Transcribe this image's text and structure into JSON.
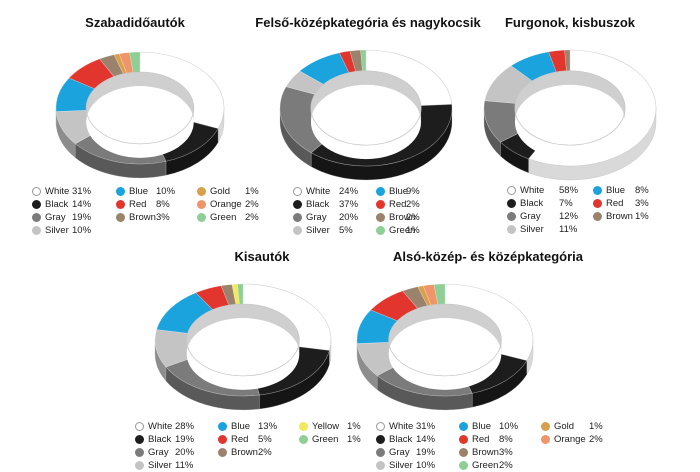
{
  "colors": {
    "White": "#ffffff",
    "Black": "#1d1d1d",
    "Gray": "#7b7b7b",
    "Silver": "#c4c4c4",
    "Blue": "#1aa3dd",
    "Red": "#e2352d",
    "Brown": "#9a826c",
    "Gold": "#d9a04b",
    "Orange": "#f0956a",
    "Green": "#8fcf95",
    "Yellow": "#f1e95c"
  },
  "chart_data": [
    {
      "type": "pie",
      "title": "Szabadidőautók",
      "slices": [
        {
          "label": "White",
          "value": 31,
          "text": "31%"
        },
        {
          "label": "Black",
          "value": 14,
          "text": "14%"
        },
        {
          "label": "Gray",
          "value": 19,
          "text": "19%"
        },
        {
          "label": "Silver",
          "value": 10,
          "text": "10%"
        },
        {
          "label": "Blue",
          "value": 10,
          "text": "10%"
        },
        {
          "label": "Red",
          "value": 8,
          "text": "8%"
        },
        {
          "label": "Brown",
          "value": 3,
          "text": "3%"
        },
        {
          "label": "Gold",
          "value": 1,
          "text": "1%"
        },
        {
          "label": "Orange",
          "value": 2,
          "text": "2%"
        },
        {
          "label": "Green",
          "value": 2,
          "text": "2%"
        }
      ],
      "legend_columns": [
        [
          "White",
          "Black",
          "Gray",
          "Silver"
        ],
        [
          "Blue",
          "Red",
          "Brown"
        ],
        [
          "Gold",
          "Orange",
          "Green"
        ]
      ]
    },
    {
      "type": "pie",
      "title": "Felső-középkategória és nagykocsik",
      "slices": [
        {
          "label": "White",
          "value": 24,
          "text": "24%"
        },
        {
          "label": "Black",
          "value": 37,
          "text": "37%"
        },
        {
          "label": "Gray",
          "value": 20,
          "text": "20%"
        },
        {
          "label": "Silver",
          "value": 5,
          "text": "5%"
        },
        {
          "label": "Blue",
          "value": 9,
          "text": "9%"
        },
        {
          "label": "Red",
          "value": 2,
          "text": "2%"
        },
        {
          "label": "Brown",
          "value": 2,
          "text": "2%"
        },
        {
          "label": "Green",
          "value": 1,
          "text": "1%"
        }
      ],
      "legend_columns": [
        [
          "White",
          "Black",
          "Gray",
          "Silver"
        ],
        [
          "Blue",
          "Red",
          "Brown",
          "Green"
        ]
      ]
    },
    {
      "type": "pie",
      "title": "Furgonok, kisbuszok",
      "slices": [
        {
          "label": "White",
          "value": 58,
          "text": "58%"
        },
        {
          "label": "Black",
          "value": 7,
          "text": "7%"
        },
        {
          "label": "Gray",
          "value": 12,
          "text": "12%"
        },
        {
          "label": "Silver",
          "value": 11,
          "text": "11%"
        },
        {
          "label": "Blue",
          "value": 8,
          "text": "8%"
        },
        {
          "label": "Red",
          "value": 3,
          "text": "3%"
        },
        {
          "label": "Brown",
          "value": 1,
          "text": "1%"
        }
      ],
      "legend_columns": [
        [
          "White",
          "Black",
          "Gray",
          "Silver"
        ],
        [
          "Blue",
          "Red",
          "Brown"
        ]
      ]
    },
    {
      "type": "pie",
      "title": "Kisautók",
      "slices": [
        {
          "label": "White",
          "value": 28,
          "text": "28%"
        },
        {
          "label": "Black",
          "value": 19,
          "text": "19%"
        },
        {
          "label": "Gray",
          "value": 20,
          "text": "20%"
        },
        {
          "label": "Silver",
          "value": 11,
          "text": "11%"
        },
        {
          "label": "Blue",
          "value": 13,
          "text": "13%"
        },
        {
          "label": "Red",
          "value": 5,
          "text": "5%"
        },
        {
          "label": "Brown",
          "value": 2,
          "text": "2%"
        },
        {
          "label": "Yellow",
          "value": 1,
          "text": "1%"
        },
        {
          "label": "Green",
          "value": 1,
          "text": "1%"
        }
      ],
      "legend_columns": [
        [
          "White",
          "Black",
          "Gray",
          "Silver"
        ],
        [
          "Blue",
          "Red",
          "Brown"
        ],
        [
          "Yellow",
          "Green"
        ]
      ]
    },
    {
      "type": "pie",
      "title": "Alsó-közép- és középkategória",
      "slices": [
        {
          "label": "White",
          "value": 31,
          "text": "31%"
        },
        {
          "label": "Black",
          "value": 14,
          "text": "14%"
        },
        {
          "label": "Gray",
          "value": 19,
          "text": "19%"
        },
        {
          "label": "Silver",
          "value": 10,
          "text": "10%"
        },
        {
          "label": "Blue",
          "value": 10,
          "text": "10%"
        },
        {
          "label": "Red",
          "value": 8,
          "text": "8%"
        },
        {
          "label": "Brown",
          "value": 3,
          "text": "3%"
        },
        {
          "label": "Gold",
          "value": 1,
          "text": "1%"
        },
        {
          "label": "Orange",
          "value": 2,
          "text": "2%"
        },
        {
          "label": "Green",
          "value": 2,
          "text": "2%"
        }
      ],
      "legend_columns": [
        [
          "White",
          "Black",
          "Gray",
          "Silver"
        ],
        [
          "Blue",
          "Red",
          "Brown",
          "Green"
        ],
        [
          "Gold",
          "Orange"
        ]
      ]
    }
  ]
}
